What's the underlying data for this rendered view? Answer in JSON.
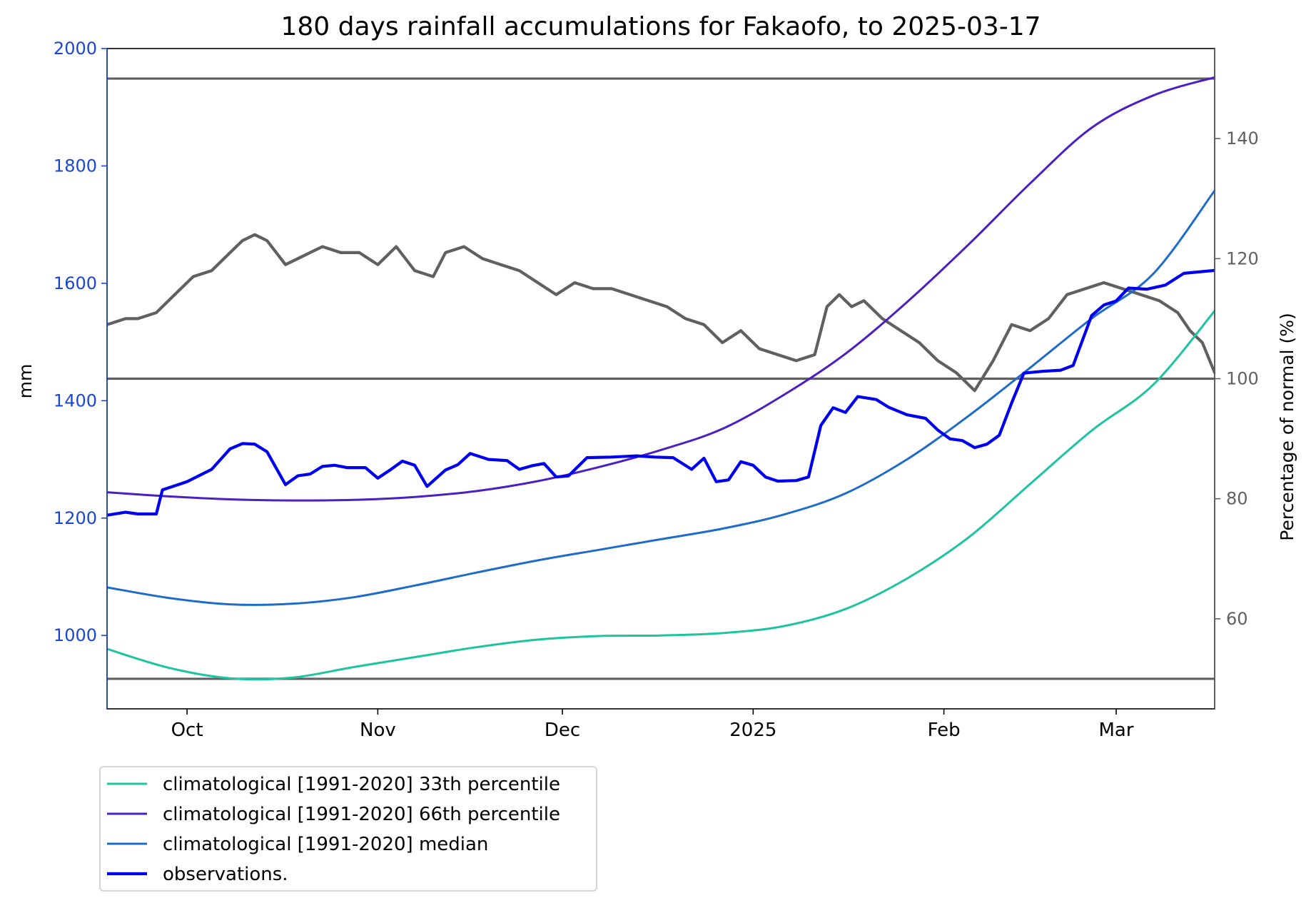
{
  "chart_data": {
    "type": "line",
    "title": "180 days rainfall accumulations for Fakaofo, to 2025-03-17",
    "ylabel_left": "mm",
    "ylabel_right": "Percentage of normal (%)",
    "x_range": [
      "2024-09-18",
      "2025-03-17"
    ],
    "y_left_range": [
      875,
      2000
    ],
    "y_right_range": [
      45,
      155
    ],
    "y_left_ticks": [
      1000,
      1200,
      1400,
      1600,
      1800,
      2000
    ],
    "y_right_ticks": [
      60,
      80,
      100,
      120,
      140
    ],
    "x_ticks": [
      {
        "date": "2024-10-01",
        "label": "Oct"
      },
      {
        "date": "2024-11-01",
        "label": "Nov"
      },
      {
        "date": "2024-12-01",
        "label": "Dec"
      },
      {
        "date": "2025-01-01",
        "label": "2025"
      },
      {
        "date": "2025-02-01",
        "label": "Feb"
      },
      {
        "date": "2025-03-01",
        "label": "Mar"
      }
    ],
    "reference_lines_percent": [
      50,
      100,
      150
    ],
    "colors": {
      "p33": "#1ec3a0",
      "p66": "#4b1fc0",
      "median": "#1e6cc8",
      "observations": "#0000ee",
      "percent": "#606060",
      "left_axis": "#1c46d0",
      "right_axis": "#606060"
    },
    "series": [
      {
        "name": "climatological [1991-2020] 33th percentile",
        "key": "p33",
        "axis": "left",
        "points": [
          [
            "2024-09-18",
            977
          ],
          [
            "2024-09-28",
            945
          ],
          [
            "2024-10-08",
            927
          ],
          [
            "2024-10-18",
            928
          ],
          [
            "2024-10-28",
            946
          ],
          [
            "2024-11-07",
            963
          ],
          [
            "2024-11-17",
            980
          ],
          [
            "2024-11-27",
            993
          ],
          [
            "2024-12-07",
            999
          ],
          [
            "2024-12-17",
            1000
          ],
          [
            "2024-12-27",
            1004
          ],
          [
            "2025-01-06",
            1016
          ],
          [
            "2025-01-16",
            1045
          ],
          [
            "2025-01-26",
            1097
          ],
          [
            "2025-02-05",
            1167
          ],
          [
            "2025-02-15",
            1258
          ],
          [
            "2025-02-25",
            1349
          ],
          [
            "2025-03-07",
            1427
          ],
          [
            "2025-03-17",
            1553
          ]
        ]
      },
      {
        "name": "climatological [1991-2020] 66th percentile",
        "key": "p66",
        "axis": "left",
        "points": [
          [
            "2024-09-18",
            1244
          ],
          [
            "2024-09-28",
            1237
          ],
          [
            "2024-10-08",
            1232
          ],
          [
            "2024-10-18",
            1230
          ],
          [
            "2024-10-28",
            1231
          ],
          [
            "2024-11-07",
            1236
          ],
          [
            "2024-11-17",
            1246
          ],
          [
            "2024-11-27",
            1263
          ],
          [
            "2024-12-07",
            1287
          ],
          [
            "2024-12-17",
            1316
          ],
          [
            "2024-12-27",
            1352
          ],
          [
            "2025-01-06",
            1410
          ],
          [
            "2025-01-16",
            1480
          ],
          [
            "2025-01-26",
            1568
          ],
          [
            "2025-02-05",
            1666
          ],
          [
            "2025-02-15",
            1770
          ],
          [
            "2025-02-25",
            1865
          ],
          [
            "2025-03-07",
            1920
          ],
          [
            "2025-03-17",
            1951
          ]
        ]
      },
      {
        "name": "climatological [1991-2020] median",
        "key": "median",
        "axis": "left",
        "points": [
          [
            "2024-09-18",
            1082
          ],
          [
            "2024-09-28",
            1064
          ],
          [
            "2024-10-08",
            1053
          ],
          [
            "2024-10-18",
            1054
          ],
          [
            "2024-10-28",
            1065
          ],
          [
            "2024-11-07",
            1085
          ],
          [
            "2024-11-17",
            1107
          ],
          [
            "2024-11-27",
            1128
          ],
          [
            "2024-12-07",
            1146
          ],
          [
            "2024-12-17",
            1164
          ],
          [
            "2024-12-27",
            1182
          ],
          [
            "2025-01-06",
            1206
          ],
          [
            "2025-01-16",
            1242
          ],
          [
            "2025-01-26",
            1300
          ],
          [
            "2025-02-05",
            1374
          ],
          [
            "2025-02-15",
            1456
          ],
          [
            "2025-02-25",
            1540
          ],
          [
            "2025-03-07",
            1616
          ],
          [
            "2025-03-17",
            1758
          ]
        ]
      },
      {
        "name": "observations.",
        "key": "observations",
        "axis": "left",
        "points": [
          [
            "2024-09-18",
            1205
          ],
          [
            "2024-09-21",
            1210
          ],
          [
            "2024-09-23",
            1207
          ],
          [
            "2024-09-26",
            1207
          ],
          [
            "2024-09-27",
            1248
          ],
          [
            "2024-10-01",
            1262
          ],
          [
            "2024-10-05",
            1283
          ],
          [
            "2024-10-08",
            1318
          ],
          [
            "2024-10-10",
            1327
          ],
          [
            "2024-10-12",
            1326
          ],
          [
            "2024-10-14",
            1313
          ],
          [
            "2024-10-17",
            1257
          ],
          [
            "2024-10-19",
            1272
          ],
          [
            "2024-10-21",
            1275
          ],
          [
            "2024-10-23",
            1288
          ],
          [
            "2024-10-25",
            1290
          ],
          [
            "2024-10-27",
            1286
          ],
          [
            "2024-10-30",
            1286
          ],
          [
            "2024-11-01",
            1268
          ],
          [
            "2024-11-03",
            1282
          ],
          [
            "2024-11-05",
            1297
          ],
          [
            "2024-11-07",
            1290
          ],
          [
            "2024-11-09",
            1254
          ],
          [
            "2024-11-12",
            1282
          ],
          [
            "2024-11-14",
            1291
          ],
          [
            "2024-11-16",
            1310
          ],
          [
            "2024-11-19",
            1300
          ],
          [
            "2024-11-22",
            1298
          ],
          [
            "2024-11-24",
            1283
          ],
          [
            "2024-11-26",
            1289
          ],
          [
            "2024-11-28",
            1293
          ],
          [
            "2024-11-30",
            1270
          ],
          [
            "2024-12-02",
            1272
          ],
          [
            "2024-12-05",
            1303
          ],
          [
            "2024-12-09",
            1304
          ],
          [
            "2024-12-13",
            1306
          ],
          [
            "2024-12-16",
            1304
          ],
          [
            "2024-12-19",
            1303
          ],
          [
            "2024-12-22",
            1283
          ],
          [
            "2024-12-24",
            1302
          ],
          [
            "2024-12-26",
            1262
          ],
          [
            "2024-12-28",
            1265
          ],
          [
            "2024-12-30",
            1296
          ],
          [
            "2025-01-01",
            1290
          ],
          [
            "2025-01-03",
            1270
          ],
          [
            "2025-01-05",
            1263
          ],
          [
            "2025-01-08",
            1264
          ],
          [
            "2025-01-10",
            1270
          ],
          [
            "2025-01-12",
            1358
          ],
          [
            "2025-01-14",
            1388
          ],
          [
            "2025-01-16",
            1380
          ],
          [
            "2025-01-18",
            1407
          ],
          [
            "2025-01-21",
            1402
          ],
          [
            "2025-01-23",
            1389
          ],
          [
            "2025-01-26",
            1376
          ],
          [
            "2025-01-29",
            1370
          ],
          [
            "2025-01-31",
            1350
          ],
          [
            "2025-02-02",
            1335
          ],
          [
            "2025-02-04",
            1332
          ],
          [
            "2025-02-06",
            1320
          ],
          [
            "2025-02-08",
            1326
          ],
          [
            "2025-02-10",
            1341
          ],
          [
            "2025-02-12",
            1396
          ],
          [
            "2025-02-14",
            1447
          ],
          [
            "2025-02-17",
            1450
          ],
          [
            "2025-02-20",
            1452
          ],
          [
            "2025-02-22",
            1460
          ],
          [
            "2025-02-25",
            1545
          ],
          [
            "2025-02-27",
            1563
          ],
          [
            "2025-03-01",
            1570
          ],
          [
            "2025-03-03",
            1592
          ],
          [
            "2025-03-06",
            1590
          ],
          [
            "2025-03-09",
            1597
          ],
          [
            "2025-03-12",
            1617
          ],
          [
            "2025-03-17",
            1622
          ]
        ]
      },
      {
        "name": "Percentage of normal (%)",
        "key": "percent",
        "axis": "right",
        "points": [
          [
            "2024-09-18",
            109
          ],
          [
            "2024-09-21",
            110
          ],
          [
            "2024-09-23",
            110
          ],
          [
            "2024-09-26",
            111
          ],
          [
            "2024-09-29",
            114
          ],
          [
            "2024-10-02",
            117
          ],
          [
            "2024-10-05",
            118
          ],
          [
            "2024-10-08",
            121
          ],
          [
            "2024-10-10",
            123
          ],
          [
            "2024-10-12",
            124
          ],
          [
            "2024-10-14",
            123
          ],
          [
            "2024-10-17",
            119
          ],
          [
            "2024-10-19",
            120
          ],
          [
            "2024-10-21",
            121
          ],
          [
            "2024-10-23",
            122
          ],
          [
            "2024-10-26",
            121
          ],
          [
            "2024-10-29",
            121
          ],
          [
            "2024-11-01",
            119
          ],
          [
            "2024-11-04",
            122
          ],
          [
            "2024-11-07",
            118
          ],
          [
            "2024-11-10",
            117
          ],
          [
            "2024-11-12",
            121
          ],
          [
            "2024-11-15",
            122
          ],
          [
            "2024-11-18",
            120
          ],
          [
            "2024-11-21",
            119
          ],
          [
            "2024-11-24",
            118
          ],
          [
            "2024-11-27",
            116
          ],
          [
            "2024-11-30",
            114
          ],
          [
            "2024-12-03",
            116
          ],
          [
            "2024-12-06",
            115
          ],
          [
            "2024-12-09",
            115
          ],
          [
            "2024-12-12",
            114
          ],
          [
            "2024-12-15",
            113
          ],
          [
            "2024-12-18",
            112
          ],
          [
            "2024-12-21",
            110
          ],
          [
            "2024-12-24",
            109
          ],
          [
            "2024-12-27",
            106
          ],
          [
            "2024-12-30",
            108
          ],
          [
            "2025-01-02",
            105
          ],
          [
            "2025-01-05",
            104
          ],
          [
            "2025-01-08",
            103
          ],
          [
            "2025-01-11",
            104
          ],
          [
            "2025-01-13",
            112
          ],
          [
            "2025-01-15",
            114
          ],
          [
            "2025-01-17",
            112
          ],
          [
            "2025-01-19",
            113
          ],
          [
            "2025-01-22",
            110
          ],
          [
            "2025-01-25",
            108
          ],
          [
            "2025-01-28",
            106
          ],
          [
            "2025-01-31",
            103
          ],
          [
            "2025-02-03",
            101
          ],
          [
            "2025-02-06",
            98
          ],
          [
            "2025-02-09",
            103
          ],
          [
            "2025-02-12",
            109
          ],
          [
            "2025-02-15",
            108
          ],
          [
            "2025-02-18",
            110
          ],
          [
            "2025-02-21",
            114
          ],
          [
            "2025-02-24",
            115
          ],
          [
            "2025-02-27",
            116
          ],
          [
            "2025-03-02",
            115
          ],
          [
            "2025-03-05",
            114
          ],
          [
            "2025-03-08",
            113
          ],
          [
            "2025-03-11",
            111
          ],
          [
            "2025-03-13",
            108
          ],
          [
            "2025-03-15",
            106
          ],
          [
            "2025-03-17",
            101
          ]
        ]
      }
    ],
    "legend": {
      "position": "below-left",
      "entries": [
        {
          "label": "climatological [1991-2020] 33th percentile",
          "key": "p33",
          "bold": false
        },
        {
          "label": "climatological [1991-2020] 66th percentile",
          "key": "p66",
          "bold": false
        },
        {
          "label": "climatological [1991-2020] median",
          "key": "median",
          "bold": false
        },
        {
          "label": "observations.",
          "key": "observations",
          "bold": true
        }
      ]
    }
  }
}
